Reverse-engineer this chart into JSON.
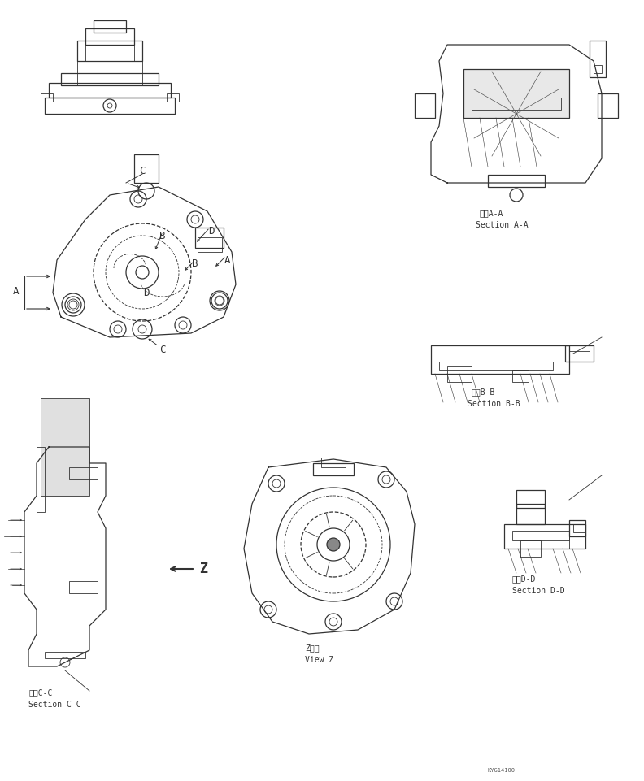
{
  "bg_color": "#f0f0f0",
  "line_color": "#333333",
  "title_text": "",
  "labels": {
    "section_aa_jp": "断面A-A",
    "section_aa_en": "Section A-A",
    "section_bb_jp": "断面B-B",
    "section_bb_en": "Section B-B",
    "section_cc_jp": "断面C-C",
    "section_cc_en": "Section C-C",
    "section_dd_jp": "断面D-D",
    "section_dd_en": "Section D-D",
    "view_z_jp": "Z　視",
    "view_z_en": "View Z",
    "part_number": "KYG14100"
  },
  "annotation_letters": [
    "A",
    "B",
    "C",
    "D"
  ],
  "arrow_color": "#333333",
  "font_size_label": 7,
  "font_size_letter": 9
}
